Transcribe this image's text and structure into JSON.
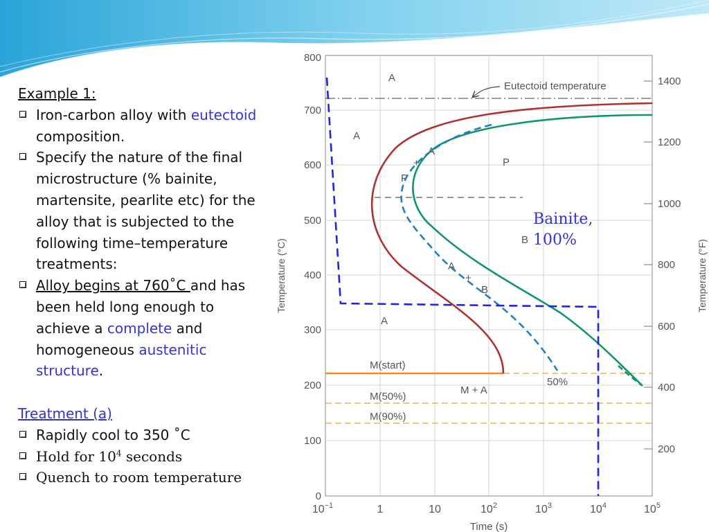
{
  "text_panel": {
    "heading": "Example 1:",
    "b1_pre": "Iron-carbon alloy with ",
    "b1_blue": "eutectoid",
    "b1_line2": "composition.",
    "b2_l1": "Specify the nature of the final",
    "b2_l2": "microstructure (% bainite,",
    "b2_l3": "martensite, pearlite etc) for the",
    "b2_l4": "alloy that is subjected to the",
    "b2_l5": "following time–temperature",
    "b2_l6": "treatments:",
    "b3_ul": "Alloy begins at 760˚C ",
    "b3_rest": "and has",
    "b3_l2": "been held long enough to",
    "b3_l3_pre": "achieve a ",
    "b3_l3_blue": "complete",
    "b3_l3_post": " and",
    "b3_l4_pre": "homogeneous ",
    "b3_l4_blue": "austenitic",
    "b3_l5_blue": "structure",
    "b3_l5_post": ".",
    "treatment_title": "Treatment (a)",
    "step1": "Rapidly cool to 350 ˚C",
    "step2_pre": "Hold for 10",
    "step2_sup": "4",
    "step2_post": " seconds",
    "step3": "Quench to room temperature"
  },
  "annotation": {
    "line1": "Bainite,",
    "line2": "100%"
  },
  "diagram": {
    "y_axis_label": "Temperature (°C)",
    "y2_axis_label": "Temperature (°F)",
    "x_axis_label": "Time (s)",
    "eutectoid_label": "Eutectoid temperature",
    "region_labels": [
      "A",
      "A",
      "P",
      "P",
      "A",
      "+",
      "A",
      "B",
      "A",
      "+",
      "B",
      "A",
      "M + A"
    ],
    "mstart_label": "M(start)",
    "m50_label": "M(50%)",
    "m90_label": "M(90%)",
    "pct50_label": "50%",
    "y_ticks_c": [
      0,
      100,
      200,
      300,
      400,
      500,
      600,
      700,
      800
    ],
    "y_ticks_f": [
      200,
      400,
      600,
      800,
      1000,
      1200,
      1400
    ],
    "x_ticks": [
      {
        "base": "10",
        "exp": "−1"
      },
      {
        "base": "1",
        "exp": ""
      },
      {
        "base": "10",
        "exp": ""
      },
      {
        "base": "10",
        "exp": "2"
      },
      {
        "base": "10",
        "exp": "3"
      },
      {
        "base": "10",
        "exp": "4"
      },
      {
        "base": "10",
        "exp": "5"
      }
    ],
    "colors": {
      "start_curve": "#b03030",
      "end_curve": "#10966a",
      "fifty_curve": "#1f7fc4",
      "path": "#2222ee",
      "m_start": "#f08a20",
      "m_dashed": "#f0a030"
    }
  }
}
